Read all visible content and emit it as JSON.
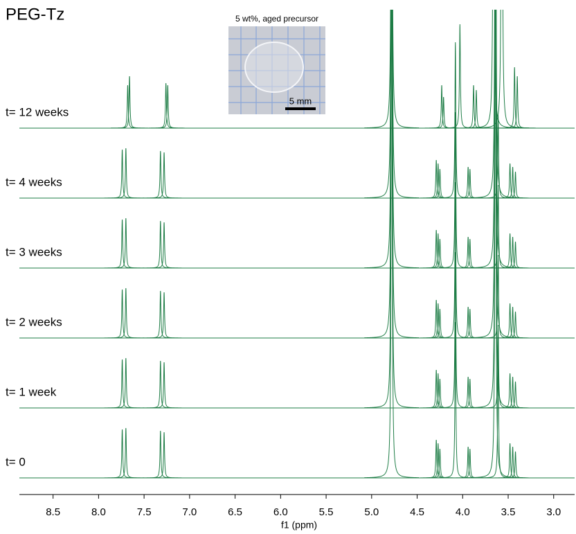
{
  "chart_data": {
    "type": "spectrum",
    "title": "PEG-Tz",
    "xlabel": "f1 (ppm)",
    "inset_caption": "5 wt%, aged precursor",
    "scale_bar_label": "5 mm",
    "xlim": [
      8.87,
      2.77
    ],
    "xticks": [
      8.5,
      {
        "value": 8,
        "label": "8.0"
      },
      7.5,
      {
        "value": 7,
        "label": "7.0"
      },
      6.5,
      {
        "value": 6,
        "label": "6.0"
      },
      5.5,
      {
        "value": 5,
        "label": "5.0"
      },
      4.5,
      {
        "value": 4,
        "label": "4.0"
      },
      3.5,
      {
        "value": 3,
        "label": "3.0"
      }
    ],
    "series": [
      {
        "name": "t= 0",
        "color": "#1e7d46",
        "ppm": [
          7.74,
          7.7,
          7.32,
          7.28,
          4.78,
          4.29,
          4.27,
          4.25,
          4.08,
          3.94,
          3.92,
          3.64,
          3.61,
          3.48,
          3.45,
          3.42
        ],
        "heights": [
          70,
          72,
          68,
          66,
          900,
          55,
          50,
          42,
          225,
          45,
          42,
          900,
          190,
          50,
          45,
          38
        ]
      },
      {
        "name": "t= 1 week",
        "color": "#1e7d46",
        "ppm": [
          7.74,
          7.7,
          7.32,
          7.28,
          4.78,
          4.29,
          4.27,
          4.25,
          4.08,
          3.94,
          3.92,
          3.64,
          3.61,
          3.48,
          3.45,
          3.42
        ],
        "heights": [
          70,
          72,
          68,
          66,
          900,
          55,
          50,
          42,
          225,
          45,
          42,
          900,
          120,
          50,
          45,
          38
        ]
      },
      {
        "name": "t= 2 weeks",
        "color": "#1e7d46",
        "ppm": [
          7.74,
          7.7,
          7.32,
          7.28,
          4.78,
          4.29,
          4.27,
          4.25,
          4.08,
          3.94,
          3.92,
          3.64,
          3.61,
          3.48,
          3.45,
          3.42
        ],
        "heights": [
          70,
          72,
          68,
          66,
          900,
          55,
          50,
          42,
          225,
          45,
          42,
          900,
          120,
          50,
          45,
          38
        ]
      },
      {
        "name": "t= 3 weeks",
        "color": "#1e7d46",
        "ppm": [
          7.74,
          7.7,
          7.32,
          7.28,
          4.78,
          4.29,
          4.27,
          4.25,
          4.08,
          3.94,
          3.92,
          3.64,
          3.61,
          3.48,
          3.45,
          3.42
        ],
        "heights": [
          70,
          72,
          68,
          66,
          900,
          55,
          50,
          42,
          225,
          45,
          42,
          900,
          120,
          50,
          45,
          38
        ]
      },
      {
        "name": "t= 4 weeks",
        "color": "#1e7d46",
        "ppm": [
          7.74,
          7.7,
          7.32,
          7.28,
          4.78,
          4.29,
          4.27,
          4.25,
          4.08,
          3.94,
          3.92,
          3.64,
          3.61,
          3.48,
          3.45,
          3.42
        ],
        "heights": [
          70,
          72,
          68,
          66,
          900,
          55,
          50,
          42,
          225,
          45,
          42,
          900,
          120,
          50,
          45,
          38
        ]
      },
      {
        "name": "t= 12 weeks",
        "color": "#1e7d46",
        "ppm": [
          7.68,
          7.66,
          7.26,
          7.24,
          4.78,
          4.23,
          4.21,
          4.03,
          3.88,
          3.85,
          3.66,
          3.57,
          3.43,
          3.4
        ],
        "heights": [
          62,
          75,
          65,
          62,
          900,
          62,
          45,
          150,
          62,
          55,
          900,
          900,
          88,
          75
        ]
      }
    ]
  }
}
